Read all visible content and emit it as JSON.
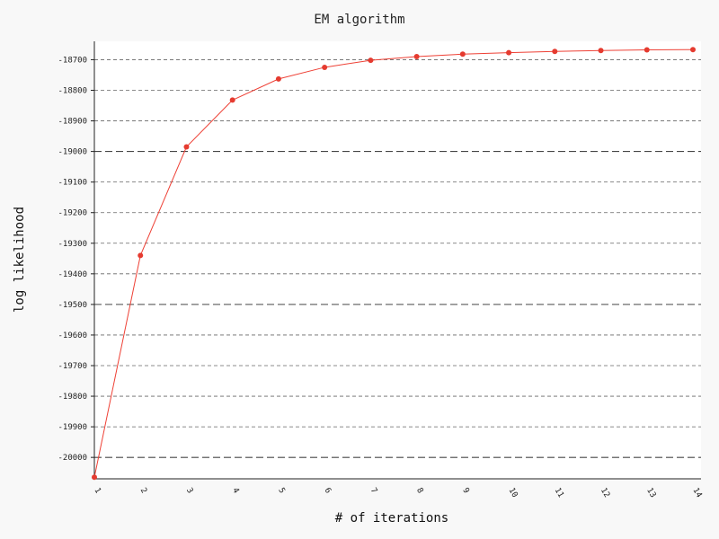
{
  "chart_data": {
    "type": "line",
    "title": "EM algorithm",
    "xlabel": "# of iterations",
    "ylabel": "log likelihood",
    "x": [
      1,
      2,
      3,
      4,
      5,
      6,
      7,
      8,
      9,
      10,
      11,
      12,
      13,
      14
    ],
    "series": [
      {
        "values": [
          -20065,
          -19340,
          -18985,
          -18832,
          -18763,
          -18725,
          -18702,
          -18690,
          -18682,
          -18677,
          -18673,
          -18670,
          -18668,
          -18667
        ]
      }
    ],
    "xlim": [
      1,
      14
    ],
    "ylim": [
      -20070,
      -18640
    ],
    "y_ticks": [
      -20000,
      -19900,
      -19800,
      -19700,
      -19600,
      -19500,
      -19400,
      -19300,
      -19200,
      -19100,
      -19000,
      -18900,
      -18800,
      -18700
    ],
    "x_tick_labels": [
      "1",
      "2",
      "3",
      "4",
      "5",
      "6",
      "7",
      "8",
      "9",
      "10",
      "11",
      "12",
      "13",
      "14"
    ],
    "y_tick_labels": [
      "-20000",
      "-19900",
      "-19800",
      "-19700",
      "-19600",
      "-19500",
      "-19400",
      "-19300",
      "-19200",
      "-19100",
      "-19000",
      "-18900",
      "-18800",
      "-18700"
    ],
    "grid": "horizontal dashed",
    "colors": {
      "line": "#ee4035",
      "marker": "#e53b30",
      "background": "#f8f8f8",
      "plot_background": "#ffffff",
      "grid": "#333333"
    }
  }
}
